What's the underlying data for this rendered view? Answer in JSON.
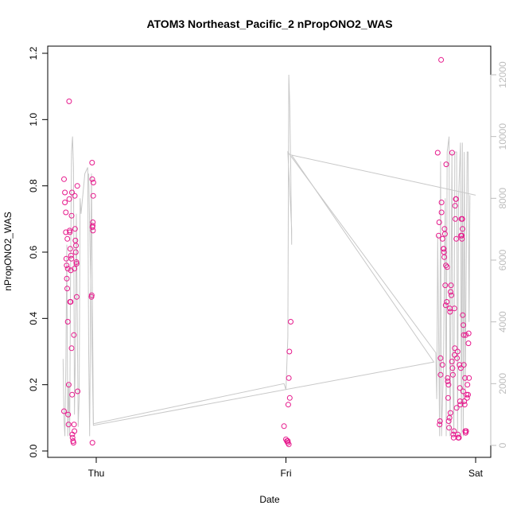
{
  "chart_data": {
    "type": "scatter",
    "title": "ATOM3 Northeast_Pacific_2 nPropONO2_WAS",
    "xlabel": "Date",
    "ylabel": "nPropONO2_WAS",
    "x_ticks": [
      "Thu",
      "Fri",
      "Sat"
    ],
    "y_ticks": [
      "0.0",
      "0.2",
      "0.4",
      "0.6",
      "0.8",
      "1.0",
      "1.2"
    ],
    "y2_ticks": [
      "0",
      "2000",
      "4000",
      "6000",
      "8000",
      "10000",
      "12000"
    ],
    "xlim_days": [
      -0.21,
      2.04
    ],
    "ylim": [
      0,
      1.2
    ],
    "y2lim": [
      0,
      12000
    ],
    "colors": {
      "points": "#e6198c",
      "line": "#c8c8c8",
      "right_axis": "#bdbdbd"
    },
    "series": [
      {
        "kind": "points",
        "axis": "left",
        "points": [
          [
            -0.17,
            0.82
          ],
          [
            -0.17,
            0.12
          ],
          [
            -0.165,
            0.78
          ],
          [
            -0.165,
            0.75
          ],
          [
            -0.16,
            0.66
          ],
          [
            -0.16,
            0.72
          ],
          [
            -0.158,
            0.58
          ],
          [
            -0.156,
            0.56
          ],
          [
            -0.155,
            0.52
          ],
          [
            -0.153,
            0.49
          ],
          [
            -0.152,
            0.64
          ],
          [
            -0.15,
            0.55
          ],
          [
            -0.15,
            0.39
          ],
          [
            -0.148,
            0.11
          ],
          [
            -0.146,
            0.08
          ],
          [
            -0.145,
            0.2
          ],
          [
            -0.143,
            1.055
          ],
          [
            -0.142,
            0.76
          ],
          [
            -0.14,
            0.665
          ],
          [
            -0.139,
            0.66
          ],
          [
            -0.138,
            0.45
          ],
          [
            -0.137,
            0.61
          ],
          [
            -0.135,
            0.45
          ],
          [
            -0.134,
            0.545
          ],
          [
            -0.133,
            0.59
          ],
          [
            -0.131,
            0.58
          ],
          [
            -0.13,
            0.71
          ],
          [
            -0.13,
            0.31
          ],
          [
            -0.128,
            0.78
          ],
          [
            -0.127,
            0.17
          ],
          [
            -0.126,
            0.05
          ],
          [
            -0.125,
            0.04
          ],
          [
            -0.122,
            0.03
          ],
          [
            -0.12,
            0.025
          ],
          [
            -0.118,
            0.35
          ],
          [
            -0.117,
            0.08
          ],
          [
            -0.115,
            0.06
          ],
          [
            -0.115,
            0.55
          ],
          [
            -0.113,
            0.77
          ],
          [
            -0.112,
            0.67
          ],
          [
            -0.11,
            0.635
          ],
          [
            -0.108,
            0.6
          ],
          [
            -0.107,
            0.62
          ],
          [
            -0.105,
            0.57
          ],
          [
            -0.104,
            0.565
          ],
          [
            -0.103,
            0.465
          ],
          [
            -0.1,
            0.8
          ],
          [
            -0.098,
            0.18
          ],
          [
            -0.02,
            0.025
          ],
          [
            -0.025,
            0.465
          ],
          [
            -0.024,
            0.47
          ],
          [
            -0.022,
            0.87
          ],
          [
            -0.021,
            0.82
          ],
          [
            -0.02,
            0.675
          ],
          [
            -0.019,
            0.68
          ],
          [
            -0.018,
            0.69
          ],
          [
            -0.017,
            0.665
          ],
          [
            -0.016,
            0.77
          ],
          [
            -0.015,
            0.81
          ],
          [
            0.99,
            0.075
          ],
          [
            1.0,
            0.035
          ],
          [
            1.005,
            0.03
          ],
          [
            1.01,
            0.025
          ],
          [
            1.015,
            0.02
          ],
          [
            1.01,
            0.03
          ],
          [
            1.012,
            0.14
          ],
          [
            1.015,
            0.22
          ],
          [
            1.02,
            0.16
          ],
          [
            1.018,
            0.3
          ],
          [
            1.025,
            0.39
          ],
          [
            1.8,
            0.9
          ],
          [
            1.805,
            0.65
          ],
          [
            1.808,
            0.69
          ],
          [
            1.81,
            0.08
          ],
          [
            1.812,
            0.09
          ],
          [
            1.815,
            0.28
          ],
          [
            1.815,
            0.23
          ],
          [
            1.818,
            1.18
          ],
          [
            1.82,
            0.75
          ],
          [
            1.82,
            0.72
          ],
          [
            1.825,
            0.26
          ],
          [
            1.825,
            0.64
          ],
          [
            1.83,
            0.61
          ],
          [
            1.832,
            0.61
          ],
          [
            1.833,
            0.6
          ],
          [
            1.835,
            0.585
          ],
          [
            1.836,
            0.67
          ],
          [
            1.838,
            0.655
          ],
          [
            1.84,
            0.5
          ],
          [
            1.842,
            0.44
          ],
          [
            1.843,
            0.56
          ],
          [
            1.845,
            0.865
          ],
          [
            1.848,
            0.45
          ],
          [
            1.85,
            0.555
          ],
          [
            1.852,
            0.22
          ],
          [
            1.853,
            0.21
          ],
          [
            1.855,
            0.16
          ],
          [
            1.857,
            0.2
          ],
          [
            1.858,
            0.09
          ],
          [
            1.86,
            0.07
          ],
          [
            1.862,
            0.1
          ],
          [
            1.864,
            0.43
          ],
          [
            1.865,
            0.42
          ],
          [
            1.867,
            0.115
          ],
          [
            1.868,
            0.48
          ],
          [
            1.87,
            0.5
          ],
          [
            1.872,
            0.47
          ],
          [
            1.875,
            0.27
          ],
          [
            1.876,
            0.9
          ],
          [
            1.878,
            0.25
          ],
          [
            1.88,
            0.23
          ],
          [
            1.882,
            0.05
          ],
          [
            1.884,
            0.04
          ],
          [
            1.886,
            0.06
          ],
          [
            1.888,
            0.43
          ],
          [
            1.889,
            0.29
          ],
          [
            1.89,
            0.31
          ],
          [
            1.892,
            0.74
          ],
          [
            1.893,
            0.7
          ],
          [
            1.895,
            0.76
          ],
          [
            1.897,
            0.76
          ],
          [
            1.898,
            0.64
          ],
          [
            1.9,
            0.13
          ],
          [
            1.902,
            0.28
          ],
          [
            1.905,
            0.3
          ],
          [
            1.906,
            0.05
          ],
          [
            1.908,
            0.04
          ],
          [
            1.91,
            0.04
          ],
          [
            1.912,
            0.04
          ],
          [
            1.915,
            0.26
          ],
          [
            1.917,
            0.19
          ],
          [
            1.918,
            0.15
          ],
          [
            1.92,
            0.14
          ],
          [
            1.922,
            0.25
          ],
          [
            1.923,
            0.65
          ],
          [
            1.925,
            0.7
          ],
          [
            1.927,
            0.65
          ],
          [
            1.928,
            0.64
          ],
          [
            1.93,
            0.7
          ],
          [
            1.931,
            0.67
          ],
          [
            1.932,
            0.41
          ],
          [
            1.934,
            0.18
          ],
          [
            1.935,
            0.38
          ],
          [
            1.937,
            0.35
          ],
          [
            1.938,
            0.26
          ],
          [
            1.94,
            0.15
          ],
          [
            1.942,
            0.14
          ],
          [
            1.944,
            0.22
          ],
          [
            1.945,
            0.06
          ],
          [
            1.947,
            0.055
          ],
          [
            1.948,
            0.35
          ],
          [
            1.95,
            0.06
          ],
          [
            1.952,
            0.17
          ],
          [
            1.955,
            0.16
          ],
          [
            1.957,
            0.2
          ],
          [
            1.96,
            0.17
          ],
          [
            1.962,
            0.325
          ],
          [
            1.963,
            0.355
          ],
          [
            1.965,
            0.22
          ]
        ]
      },
      {
        "kind": "line",
        "axis": "right",
        "points": [
          [
            -0.175,
            2800
          ],
          [
            -0.17,
            800
          ],
          [
            -0.165,
            300
          ],
          [
            -0.16,
            2500
          ],
          [
            -0.155,
            6500
          ],
          [
            -0.15,
            300
          ],
          [
            -0.145,
            2000
          ],
          [
            -0.14,
            300
          ],
          [
            -0.135,
            6000
          ],
          [
            -0.13,
            9500
          ],
          [
            -0.125,
            10000
          ],
          [
            -0.12,
            9000
          ],
          [
            -0.115,
            1000
          ],
          [
            -0.11,
            3000
          ],
          [
            -0.105,
            7500
          ],
          [
            -0.1,
            4000
          ],
          [
            -0.095,
            600
          ],
          [
            -0.09,
            1500
          ],
          [
            -0.085,
            8000
          ],
          [
            -0.08,
            7500
          ],
          [
            -0.06,
            8800
          ],
          [
            -0.045,
            9000
          ],
          [
            -0.04,
            3000
          ],
          [
            -0.035,
            300
          ],
          [
            -0.025,
            8800
          ],
          [
            -0.015,
            700
          ],
          [
            0.99,
            2000
          ],
          [
            1.0,
            1800
          ],
          [
            1.01,
            3500
          ],
          [
            1.015,
            12000
          ],
          [
            1.02,
            11000
          ],
          [
            1.025,
            9000
          ],
          [
            1.03,
            6500
          ],
          [
            1.03,
            7000
          ],
          [
            1.01,
            9500
          ],
          [
            1.79,
            3000
          ],
          [
            1.795,
            1500
          ],
          [
            1.8,
            6800
          ],
          [
            1.81,
            300
          ],
          [
            1.815,
            9200
          ],
          [
            1.82,
            300
          ],
          [
            1.83,
            2500
          ],
          [
            1.84,
            8000
          ],
          [
            1.845,
            300
          ],
          [
            1.85,
            9500
          ],
          [
            1.86,
            10000
          ],
          [
            1.865,
            300
          ],
          [
            1.875,
            9500
          ],
          [
            1.88,
            2000
          ],
          [
            1.885,
            300
          ],
          [
            1.89,
            9500
          ],
          [
            1.9,
            9500
          ],
          [
            1.905,
            300
          ],
          [
            1.91,
            8000
          ],
          [
            1.92,
            9800
          ],
          [
            1.925,
            300
          ],
          [
            1.93,
            9800
          ],
          [
            1.935,
            300
          ],
          [
            1.94,
            9500
          ],
          [
            1.945,
            1800
          ],
          [
            1.955,
            9500
          ],
          [
            1.96,
            9500
          ],
          [
            1.965,
            4000
          ],
          [
            1.97,
            8100
          ]
        ]
      }
    ],
    "overview_line": [
      [
        -0.04,
        8800
      ],
      [
        -0.015,
        650
      ],
      [
        1.78,
        2700
      ],
      [
        1.03,
        9400
      ],
      [
        2.0,
        8100
      ]
    ]
  }
}
